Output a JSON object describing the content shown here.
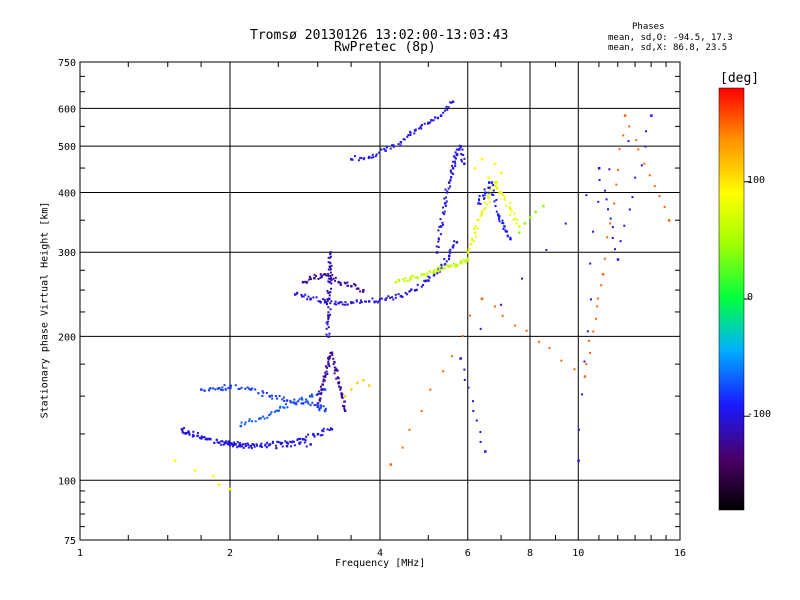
{
  "chart_data": {
    "type": "scatter",
    "title": "Tromsø 20130126 13:02:00-13:03:43",
    "subtitle": "RwPretec (8p)",
    "phase_header": "Phases",
    "phase_o": "mean, sd,O: -94.5, 17.3",
    "phase_x": "mean, sd,X:  86.8, 23.5",
    "xlabel": "Frequency [MHz]",
    "ylabel": "Stationary phase Virtual Height [km]",
    "xscale": "log",
    "yscale": "log",
    "xlim": [
      1,
      16
    ],
    "ylim": [
      75,
      750
    ],
    "xticks": [
      1,
      2,
      4,
      6,
      8,
      10,
      16
    ],
    "xtick_labels": [
      "1",
      "2",
      "4",
      "6",
      "8",
      "10",
      "16"
    ],
    "yticks": [
      75,
      100,
      200,
      300,
      400,
      500,
      600,
      750
    ],
    "ytick_labels": [
      "75",
      "100",
      "200",
      "300",
      "400",
      "500",
      "600",
      "750"
    ],
    "grid": true,
    "colorbar": {
      "label": "[deg]",
      "range": [
        -180,
        180
      ],
      "ticks": [
        100,
        0,
        -100
      ],
      "tick_labels": [
        "100",
        "0",
        "-100"
      ]
    },
    "series": [
      {
        "phase_deg": -95,
        "x": [
          1.95,
          2.05,
          2.2,
          2.4,
          2.6,
          2.8,
          3.0,
          3.2
        ],
        "y": [
          120,
          119,
          118,
          119,
          120,
          122,
          125,
          128
        ]
      },
      {
        "phase_deg": -100,
        "x": [
          1.6,
          1.65,
          1.72,
          1.8,
          1.9,
          2.0,
          2.1,
          2.3,
          2.6,
          2.9
        ],
        "y": [
          128,
          126,
          124,
          122,
          120,
          119,
          118,
          118,
          118,
          119
        ]
      },
      {
        "phase_deg": -80,
        "x": [
          1.75,
          1.9,
          2.0,
          2.2,
          2.4,
          2.6,
          2.8,
          3.0,
          3.1
        ],
        "y": [
          155,
          156,
          157,
          155,
          150,
          147,
          145,
          143,
          140
        ]
      },
      {
        "phase_deg": -70,
        "x": [
          2.1,
          2.3,
          2.5,
          2.7,
          2.9,
          3.1
        ],
        "y": [
          130,
          135,
          140,
          145,
          150,
          155
        ]
      },
      {
        "phase_deg": -120,
        "x": [
          3.0,
          3.05,
          3.1,
          3.15,
          3.2,
          3.25,
          3.3,
          3.35,
          3.4
        ],
        "y": [
          145,
          155,
          165,
          175,
          185,
          170,
          160,
          150,
          140
        ]
      },
      {
        "phase_deg": -110,
        "x": [
          3.15,
          3.15,
          3.16,
          3.17,
          3.17,
          3.18
        ],
        "y": [
          200,
          220,
          240,
          260,
          280,
          300
        ]
      },
      {
        "phase_deg": -100,
        "x": [
          2.7,
          2.9,
          3.1,
          3.3,
          3.5,
          3.8,
          4.1,
          4.4,
          4.7,
          5.0,
          5.3,
          5.5,
          5.7
        ],
        "y": [
          245,
          240,
          236,
          235,
          236,
          237,
          239,
          243,
          250,
          262,
          278,
          295,
          315
        ]
      },
      {
        "phase_deg": -120,
        "x": [
          2.8,
          2.95,
          3.1,
          3.3,
          3.5,
          3.7
        ],
        "y": [
          260,
          265,
          270,
          260,
          255,
          250
        ]
      },
      {
        "phase_deg": -100,
        "x": [
          5.2,
          5.3,
          5.4,
          5.5,
          5.6,
          5.7,
          5.8,
          5.9
        ],
        "y": [
          300,
          340,
          380,
          420,
          450,
          480,
          500,
          460
        ]
      },
      {
        "phase_deg": -95,
        "x": [
          3.5,
          3.8,
          4.1,
          4.4,
          4.7,
          5.0,
          5.3,
          5.6
        ],
        "y": [
          470,
          475,
          490,
          510,
          540,
          560,
          580,
          620
        ]
      },
      {
        "phase_deg": 60,
        "x": [
          4.3,
          4.6,
          4.9,
          5.2,
          5.5,
          5.8,
          6.0
        ],
        "y": [
          260,
          265,
          270,
          275,
          280,
          285,
          290
        ]
      },
      {
        "phase_deg": 80,
        "x": [
          6.0,
          6.2,
          6.4,
          6.6,
          6.8,
          7.0,
          7.3,
          7.6
        ],
        "y": [
          300,
          330,
          360,
          390,
          420,
          400,
          370,
          340
        ]
      },
      {
        "phase_deg": 90,
        "x": [
          6.2,
          6.4,
          6.6,
          6.8,
          7.0
        ],
        "y": [
          450,
          470,
          430,
          460,
          440
        ]
      },
      {
        "phase_deg": 40,
        "x": [
          7.6,
          7.8,
          8.0,
          8.2,
          8.5
        ],
        "y": [
          330,
          345,
          355,
          365,
          375
        ]
      },
      {
        "phase_deg": -90,
        "x": [
          6.3,
          6.5,
          6.7,
          6.9,
          7.1,
          7.3
        ],
        "y": [
          380,
          400,
          420,
          360,
          340,
          320
        ]
      },
      {
        "phase_deg": 110,
        "x": [
          3.4,
          3.5,
          3.6,
          3.7,
          3.8
        ],
        "y": [
          150,
          155,
          160,
          162,
          158
        ]
      },
      {
        "phase_deg": 90,
        "x": [
          1.55,
          1.7,
          1.85,
          1.9,
          2.0
        ],
        "y": [
          110,
          105,
          102,
          98,
          96
        ]
      },
      {
        "phase_deg": -100,
        "x": [
          10.0,
          11.0,
          12.0,
          14.0,
          5.8,
          6.5
        ],
        "y": [
          110,
          450,
          290,
          580,
          180,
          115
        ]
      },
      {
        "phase_deg": 150,
        "x": [
          4.2,
          6.4,
          10.3,
          11.2,
          12.4,
          15.2
        ],
        "y": [
          108,
          240,
          165,
          270,
          580,
          350
        ]
      }
    ]
  }
}
